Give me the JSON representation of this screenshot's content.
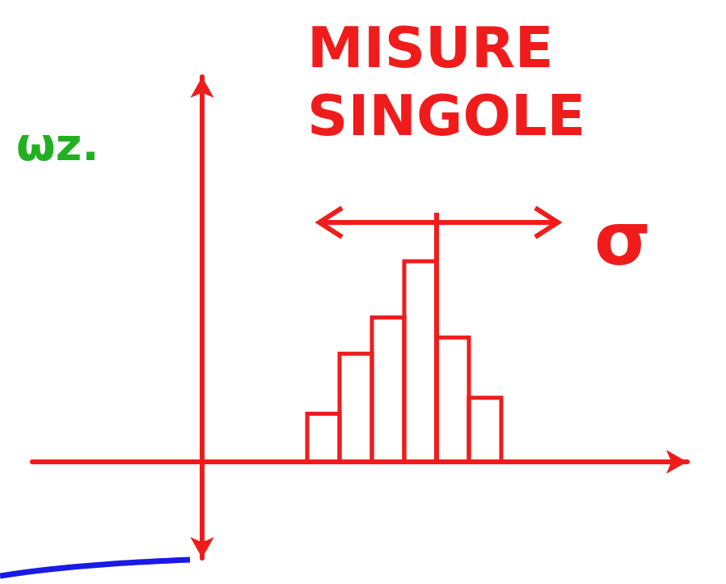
{
  "chart_data": {
    "type": "histogram",
    "title": "MISURE SINGOLE",
    "bins": [
      13,
      17,
      21,
      25,
      29,
      33,
      37
    ],
    "counts": [
      6,
      13.5,
      18,
      25,
      15.5,
      8
    ],
    "color": "#f01c1c",
    "xlim": [
      -21,
      60
    ],
    "ylim": [
      -12,
      48
    ],
    "xticks": [],
    "yticks": [],
    "tick_labels": false,
    "grid": false,
    "annotations": [
      {
        "text": "σ",
        "color": "#f01c1c"
      },
      {
        "text": "ωz.",
        "color": "#22b022"
      }
    ]
  }
}
